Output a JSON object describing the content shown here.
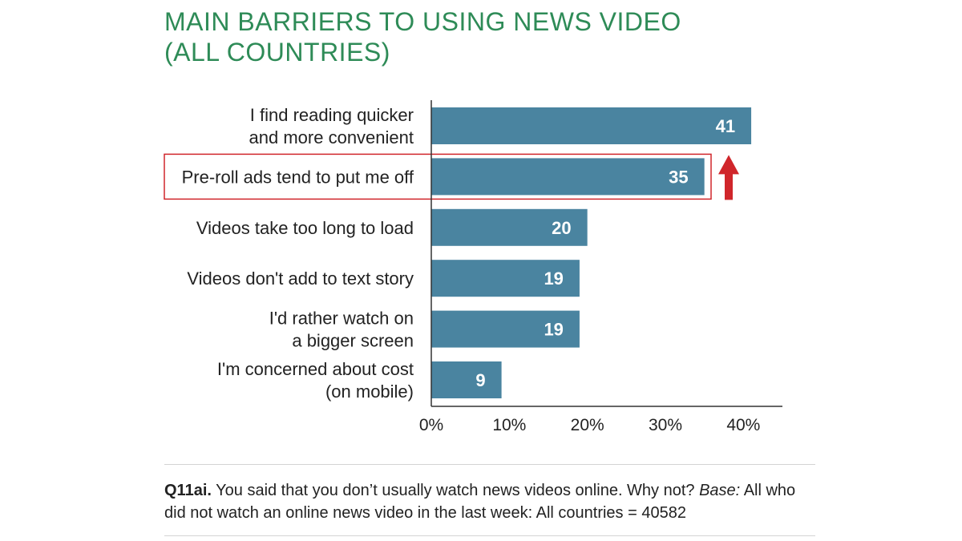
{
  "title": {
    "line1": "MAIN BARRIERS TO USING NEWS VIDEO",
    "line2": "(ALL COUNTRIES)"
  },
  "colors": {
    "bar": "#4a84a0",
    "title": "#2e8b57",
    "highlight": "#d0262b"
  },
  "chart_data": {
    "type": "bar",
    "orientation": "horizontal",
    "categories": [
      [
        "I find reading quicker",
        "and more convenient"
      ],
      [
        "Pre-roll ads tend to put me off"
      ],
      [
        "Videos take too long to load"
      ],
      [
        "Videos don't add to text story"
      ],
      [
        "I'd rather watch on",
        "a bigger screen"
      ],
      [
        "I'm concerned about cost",
        "(on mobile)"
      ]
    ],
    "values": [
      41,
      35,
      20,
      19,
      19,
      9
    ],
    "data_labels": [
      "41",
      "35",
      "20",
      "19",
      "19",
      "9"
    ],
    "xlim": [
      0,
      45
    ],
    "x_ticks": [
      0,
      10,
      20,
      30,
      40
    ],
    "x_tick_labels": [
      "0%",
      "10%",
      "20%",
      "30%",
      "40%"
    ],
    "xlabel": "",
    "ylabel": "",
    "grid": false,
    "annotations": {
      "highlighted_category_index": 1,
      "arrow_next_to_category_index": 1,
      "arrow_direction": "up"
    }
  },
  "footnote": {
    "code": "Q11ai.",
    "question": " You said that you don’t usually watch news videos online. Why not? ",
    "base_label": "Base:",
    "base_text": " All who did not watch an online news video in the last week: All countries = 40582"
  }
}
